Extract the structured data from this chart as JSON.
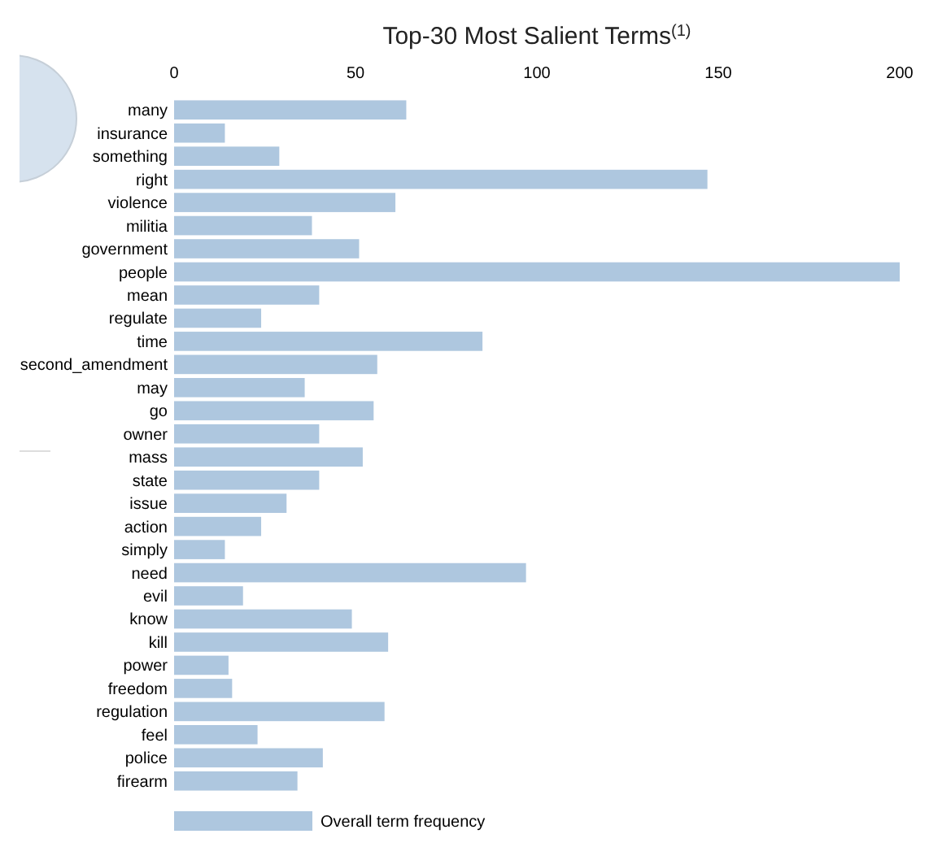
{
  "chart_data": {
    "type": "bar",
    "orientation": "horizontal",
    "title": "Top-30 Most Salient Terms$^{(1)}$",
    "categories": [
      "many",
      "insurance",
      "something",
      "right",
      "violence",
      "militia",
      "government",
      "people",
      "mean",
      "regulate",
      "time",
      "second_amendment",
      "may",
      "go",
      "owner",
      "mass",
      "state",
      "issue",
      "action",
      "simply",
      "need",
      "evil",
      "know",
      "kill",
      "power",
      "freedom",
      "regulation",
      "feel",
      "police",
      "firearm"
    ],
    "series": [
      {
        "name": "Overall term frequency",
        "color": "#aec7df",
        "values": [
          64,
          14,
          29,
          147,
          61,
          38,
          51,
          200,
          40,
          24,
          85,
          56,
          36,
          55,
          40,
          52,
          40,
          31,
          24,
          14,
          97,
          19,
          49,
          59,
          15,
          16,
          58,
          23,
          41,
          34
        ]
      }
    ],
    "xlim": [
      0,
      200
    ],
    "xticks": [
      0,
      50,
      100,
      150,
      200
    ],
    "grid": false,
    "legend": "bottom"
  }
}
